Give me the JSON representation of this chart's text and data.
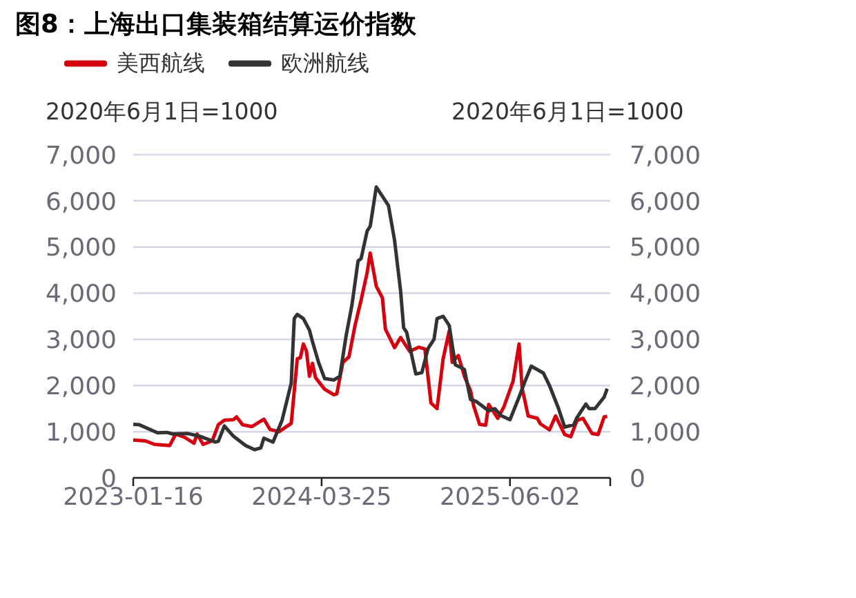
{
  "chart_data": {
    "type": "line",
    "title": "图8：上海出口集装箱结算运价指数",
    "ylabel": "2020年6月1日=1000",
    "y2label": "2020年6月1日=1000",
    "legend": "top",
    "grid": "y",
    "xlim": [
      "2023-01-16",
      "2026-01-19"
    ],
    "xticks": [
      "2023-01-16",
      "2024-03-25",
      "2025-06-02",
      {
        "value": "2026-01-19",
        "label": null
      }
    ],
    "ylim": [
      0,
      7000
    ],
    "yticks": [
      0,
      {
        "value": 1000,
        "label": "1,000"
      },
      {
        "value": 2000,
        "label": "2,000"
      },
      {
        "value": 3000,
        "label": "3,000"
      },
      {
        "value": 4000,
        "label": "4,000"
      },
      {
        "value": 5000,
        "label": "5,000"
      },
      {
        "value": 6000,
        "label": "6,000"
      },
      {
        "value": 7000,
        "label": "7,000"
      }
    ],
    "y2lim": [
      0,
      7000
    ],
    "y2ticks": [
      0,
      {
        "value": 1000,
        "label": "1,000"
      },
      {
        "value": 2000,
        "label": "2,000"
      },
      {
        "value": 3000,
        "label": "3,000"
      },
      {
        "value": 4000,
        "label": "4,000"
      },
      {
        "value": 5000,
        "label": "5,000"
      },
      {
        "value": 6000,
        "label": "6,000"
      },
      {
        "value": 7000,
        "label": "7,000"
      }
    ],
    "series": [
      {
        "name": "美西航线",
        "color": "#d7000f",
        "x": [
          "2023-01-16",
          "2023-02-13",
          "2023-03-06",
          "2023-04-10",
          "2023-04-24",
          "2023-05-15",
          "2023-06-05",
          "2023-06-12",
          "2023-06-26",
          "2023-07-17",
          "2023-07-31",
          "2023-08-14",
          "2023-09-04",
          "2023-09-11",
          "2023-09-25",
          "2023-10-16",
          "2023-11-13",
          "2023-11-27",
          "2023-12-18",
          "2024-01-15",
          "2024-01-29",
          "2024-02-05",
          "2024-02-12",
          "2024-02-19",
          "2024-02-26",
          "2024-03-04",
          "2024-03-11",
          "2024-04-01",
          "2024-04-22",
          "2024-04-29",
          "2024-05-13",
          "2024-05-27",
          "2024-06-10",
          "2024-06-24",
          "2024-07-08",
          "2024-07-15",
          "2024-07-29",
          "2024-08-12",
          "2024-08-19",
          "2024-09-09",
          "2024-09-23",
          "2024-10-14",
          "2024-11-04",
          "2024-11-18",
          "2024-12-02",
          "2024-12-16",
          "2024-12-30",
          "2025-01-13",
          "2025-01-20",
          "2025-02-03",
          "2025-02-17",
          "2025-03-03",
          "2025-03-10",
          "2025-03-24",
          "2025-04-07",
          "2025-04-14",
          "2025-05-05",
          "2025-05-19",
          "2025-06-09",
          "2025-06-23",
          "2025-06-30",
          "2025-07-14",
          "2025-08-04",
          "2025-08-11",
          "2025-09-01",
          "2025-09-15",
          "2025-10-06",
          "2025-10-20",
          "2025-11-03",
          "2025-11-17",
          "2025-12-08",
          "2025-12-22",
          "2026-01-05",
          "2026-01-12"
        ],
        "values": [
          820,
          800,
          725,
          700,
          950,
          875,
          750,
          950,
          725,
          800,
          1150,
          1250,
          1260,
          1320,
          1150,
          1110,
          1270,
          1050,
          1000,
          1180,
          2580,
          2600,
          2900,
          2750,
          2200,
          2480,
          2170,
          1920,
          1800,
          1820,
          2500,
          2620,
          3300,
          3850,
          4450,
          4870,
          4150,
          3900,
          3220,
          2820,
          3040,
          2740,
          2830,
          2790,
          1620,
          1500,
          2580,
          3180,
          2500,
          2650,
          2200,
          1890,
          1570,
          1160,
          1140,
          1590,
          1290,
          1540,
          2090,
          2900,
          1940,
          1340,
          1290,
          1170,
          1040,
          1340,
          940,
          890,
          1240,
          1290,
          960,
          940,
          1320,
          1330
        ]
      },
      {
        "name": "欧洲航线",
        "color": "#333333",
        "x": [
          "2023-01-16",
          "2023-01-30",
          "2023-03-13",
          "2023-04-03",
          "2023-04-17",
          "2023-05-22",
          "2023-06-19",
          "2023-07-24",
          "2023-07-31",
          "2023-08-14",
          "2023-09-04",
          "2023-10-02",
          "2023-10-23",
          "2023-11-06",
          "2023-11-13",
          "2023-12-04",
          "2023-12-25",
          "2024-01-15",
          "2024-01-22",
          "2024-01-29",
          "2024-02-12",
          "2024-02-26",
          "2024-03-04",
          "2024-03-18",
          "2024-04-01",
          "2024-04-22",
          "2024-05-06",
          "2024-05-20",
          "2024-06-03",
          "2024-06-17",
          "2024-06-24",
          "2024-07-08",
          "2024-07-15",
          "2024-07-29",
          "2024-08-12",
          "2024-08-26",
          "2024-09-09",
          "2024-09-23",
          "2024-09-30",
          "2024-10-07",
          "2024-10-28",
          "2024-11-11",
          "2024-11-25",
          "2024-12-09",
          "2024-12-16",
          "2024-12-30",
          "2025-01-13",
          "2025-01-27",
          "2025-02-17",
          "2025-03-03",
          "2025-03-17",
          "2025-04-14",
          "2025-04-28",
          "2025-05-12",
          "2025-06-02",
          "2025-06-23",
          "2025-07-07",
          "2025-07-21",
          "2025-08-18",
          "2025-09-01",
          "2025-09-22",
          "2025-10-06",
          "2025-10-27",
          "2025-11-03",
          "2025-11-17",
          "2025-11-24",
          "2025-12-01",
          "2025-12-15",
          "2026-01-05",
          "2026-01-12"
        ],
        "values": [
          1160,
          1150,
          975,
          985,
          950,
          960,
          900,
          775,
          790,
          1125,
          900,
          700,
          610,
          650,
          860,
          775,
          1250,
          2050,
          3450,
          3540,
          3450,
          3200,
          2950,
          2500,
          2150,
          2120,
          2200,
          3050,
          3750,
          4700,
          4750,
          5350,
          5450,
          6300,
          6100,
          5900,
          5150,
          4050,
          3250,
          3150,
          2250,
          2280,
          2800,
          3000,
          3450,
          3500,
          3300,
          2450,
          2350,
          1700,
          1650,
          1450,
          1500,
          1350,
          1260,
          1750,
          2100,
          2420,
          2270,
          2000,
          1500,
          1100,
          1150,
          1300,
          1500,
          1600,
          1500,
          1500,
          1750,
          1930
        ]
      }
    ]
  }
}
